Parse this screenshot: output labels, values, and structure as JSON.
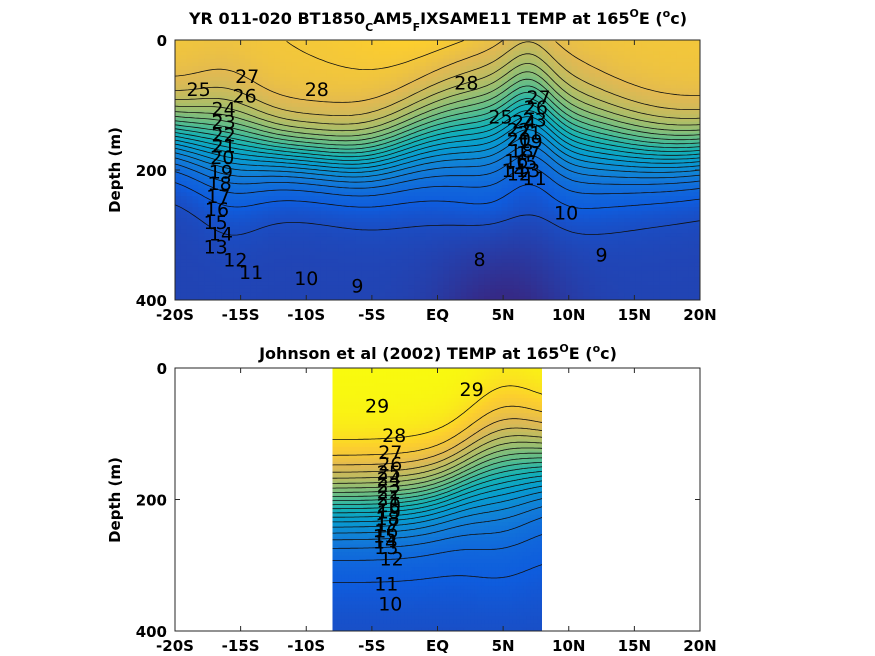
{
  "chart_data": [
    {
      "type": "heatmap",
      "title_parts": [
        "YR 011-020 BT1850",
        "C",
        "AM5",
        "F",
        "IXSAME11 TEMP at 165",
        "O",
        "E (",
        "o",
        "c)"
      ],
      "ylabel": "Depth (m)",
      "xlim": [
        -20,
        20
      ],
      "ylim": [
        0,
        400
      ],
      "x_ticks": [
        "-20S",
        "-15S",
        "-10S",
        "-5S",
        "EQ",
        "5N",
        "10N",
        "15N",
        "20N"
      ],
      "y_ticks": [
        "0",
        "200",
        "400"
      ],
      "colormap": "parula",
      "color_range": [
        6,
        30
      ],
      "contour_labels": [
        {
          "text": "27",
          "lat": -14.5,
          "depth": 55
        },
        {
          "text": "25",
          "lat": -18.2,
          "depth": 75
        },
        {
          "text": "26",
          "lat": -14.7,
          "depth": 85
        },
        {
          "text": "28",
          "lat": -9.2,
          "depth": 75
        },
        {
          "text": "28",
          "lat": 2.2,
          "depth": 65
        },
        {
          "text": "24",
          "lat": -16.3,
          "depth": 105
        },
        {
          "text": "23",
          "lat": -16.3,
          "depth": 125
        },
        {
          "text": "22",
          "lat": -16.3,
          "depth": 145
        },
        {
          "text": "21",
          "lat": -16.3,
          "depth": 162
        },
        {
          "text": "20",
          "lat": -16.4,
          "depth": 180
        },
        {
          "text": "19",
          "lat": -16.5,
          "depth": 202
        },
        {
          "text": "18",
          "lat": -16.6,
          "depth": 220
        },
        {
          "text": "17",
          "lat": -16.7,
          "depth": 240
        },
        {
          "text": "16",
          "lat": -16.8,
          "depth": 260
        },
        {
          "text": "15",
          "lat": -16.9,
          "depth": 280
        },
        {
          "text": "14",
          "lat": -16.5,
          "depth": 298
        },
        {
          "text": "13",
          "lat": -16.9,
          "depth": 318
        },
        {
          "text": "12",
          "lat": -15.4,
          "depth": 338
        },
        {
          "text": "11",
          "lat": -14.2,
          "depth": 357
        },
        {
          "text": "10",
          "lat": -10.0,
          "depth": 366
        },
        {
          "text": "9",
          "lat": -6.1,
          "depth": 378
        },
        {
          "text": "8",
          "lat": 3.2,
          "depth": 337
        },
        {
          "text": "27",
          "lat": 7.7,
          "depth": 88
        },
        {
          "text": "26",
          "lat": 7.5,
          "depth": 103
        },
        {
          "text": "25",
          "lat": 4.8,
          "depth": 118
        },
        {
          "text": "24",
          "lat": 6.6,
          "depth": 125
        },
        {
          "text": "23",
          "lat": 7.4,
          "depth": 122
        },
        {
          "text": "22",
          "lat": 6.2,
          "depth": 138
        },
        {
          "text": "21",
          "lat": 7.0,
          "depth": 142
        },
        {
          "text": "20",
          "lat": 6.2,
          "depth": 152
        },
        {
          "text": "19",
          "lat": 7.1,
          "depth": 155
        },
        {
          "text": "18",
          "lat": 6.4,
          "depth": 170
        },
        {
          "text": "17",
          "lat": 6.9,
          "depth": 173
        },
        {
          "text": "16",
          "lat": 6.0,
          "depth": 185
        },
        {
          "text": "15",
          "lat": 6.7,
          "depth": 188
        },
        {
          "text": "14",
          "lat": 5.8,
          "depth": 200
        },
        {
          "text": "13",
          "lat": 6.9,
          "depth": 200
        },
        {
          "text": "12",
          "lat": 6.2,
          "depth": 205
        },
        {
          "text": "11",
          "lat": 7.4,
          "depth": 212
        },
        {
          "text": "10",
          "lat": 9.8,
          "depth": 265
        },
        {
          "text": "9",
          "lat": 12.5,
          "depth": 330
        }
      ]
    },
    {
      "type": "heatmap",
      "title_parts": [
        "Johnson et al (2002) TEMP at 165",
        "O",
        "E (",
        "o",
        "c)"
      ],
      "ylabel": "Depth (m)",
      "xlim": [
        -20,
        20
      ],
      "ylim": [
        0,
        400
      ],
      "data_lat_range": [
        -8,
        8
      ],
      "x_ticks": [
        "-20S",
        "-15S",
        "-10S",
        "-5S",
        "EQ",
        "5N",
        "10N",
        "15N",
        "20N"
      ],
      "y_ticks": [
        "0",
        "200",
        "400"
      ],
      "colormap": "parula",
      "color_range": [
        6,
        30
      ],
      "contour_labels": [
        {
          "text": "29",
          "lat": -4.6,
          "depth": 57
        },
        {
          "text": "29",
          "lat": 2.6,
          "depth": 32
        },
        {
          "text": "28",
          "lat": -3.3,
          "depth": 102
        },
        {
          "text": "27",
          "lat": -3.6,
          "depth": 128
        },
        {
          "text": "26",
          "lat": -3.6,
          "depth": 145
        },
        {
          "text": "25",
          "lat": -3.7,
          "depth": 158
        },
        {
          "text": "24",
          "lat": -3.7,
          "depth": 168
        },
        {
          "text": "23",
          "lat": -3.7,
          "depth": 178
        },
        {
          "text": "22",
          "lat": -3.7,
          "depth": 188
        },
        {
          "text": "21",
          "lat": -3.7,
          "depth": 198
        },
        {
          "text": "20",
          "lat": -3.7,
          "depth": 208
        },
        {
          "text": "19",
          "lat": -3.7,
          "depth": 218
        },
        {
          "text": "18",
          "lat": -3.8,
          "depth": 228
        },
        {
          "text": "17",
          "lat": -3.8,
          "depth": 238
        },
        {
          "text": "16",
          "lat": -3.9,
          "depth": 247
        },
        {
          "text": "15",
          "lat": -4.0,
          "depth": 255
        },
        {
          "text": "14",
          "lat": -4.0,
          "depth": 264
        },
        {
          "text": "13",
          "lat": -3.9,
          "depth": 272
        },
        {
          "text": "12",
          "lat": -3.5,
          "depth": 290
        },
        {
          "text": "11",
          "lat": -3.9,
          "depth": 328
        },
        {
          "text": "10",
          "lat": -3.6,
          "depth": 358
        }
      ]
    }
  ]
}
